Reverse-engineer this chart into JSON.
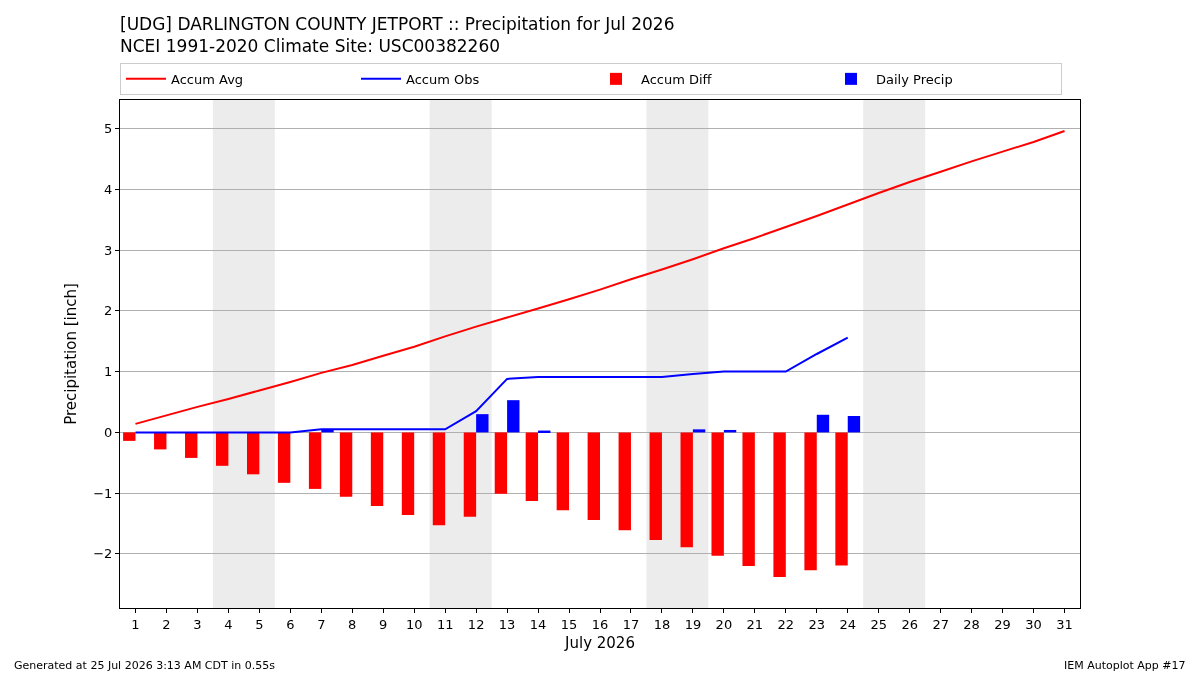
{
  "chart_data": {
    "type": "bar",
    "title": "[UDG] DARLINGTON COUNTY JETPORT :: Precipitation for Jul 2026",
    "subtitle": "NCEI 1991-2020 Climate Site: USC00382260",
    "xlabel": "July 2026",
    "ylabel": "Precipitation [inch]",
    "x": [
      1,
      2,
      3,
      4,
      5,
      6,
      7,
      8,
      9,
      10,
      11,
      12,
      13,
      14,
      15,
      16,
      17,
      18,
      19,
      20,
      21,
      22,
      23,
      24,
      25,
      26,
      27,
      28,
      29,
      30,
      31
    ],
    "series": [
      {
        "name": "Accum Avg",
        "type": "line",
        "color": "#ff0000",
        "values": [
          0.14,
          0.28,
          0.42,
          0.55,
          0.69,
          0.83,
          0.98,
          1.11,
          1.26,
          1.41,
          1.58,
          1.74,
          1.89,
          2.04,
          2.19,
          2.35,
          2.52,
          2.68,
          2.85,
          3.03,
          3.2,
          3.38,
          3.56,
          3.75,
          3.94,
          4.12,
          4.29,
          4.46,
          4.62,
          4.78,
          4.96
        ]
      },
      {
        "name": "Accum Obs",
        "type": "line",
        "color": "#0000ff",
        "values": [
          0,
          0,
          0,
          0,
          0,
          0,
          0.05,
          0.05,
          0.05,
          0.05,
          0.05,
          0.35,
          0.88,
          0.91,
          0.91,
          0.91,
          0.91,
          0.91,
          0.96,
          1.0,
          1.0,
          1.0,
          1.29,
          1.56,
          null,
          null,
          null,
          null,
          null,
          null,
          null
        ]
      },
      {
        "name": "Accum Diff",
        "color": "#ff0000",
        "values": [
          -0.14,
          -0.28,
          -0.42,
          -0.55,
          -0.69,
          -0.83,
          -0.93,
          -1.06,
          -1.21,
          -1.36,
          -1.53,
          -1.39,
          -1.01,
          -1.13,
          -1.28,
          -1.44,
          -1.61,
          -1.77,
          -1.89,
          -2.03,
          -2.2,
          -2.38,
          -2.27,
          -2.19,
          null,
          null,
          null,
          null,
          null,
          null,
          null
        ]
      },
      {
        "name": "Daily Precip",
        "color": "#0000ff",
        "values": [
          0,
          0,
          0,
          0,
          0,
          0,
          0.05,
          0,
          0,
          0,
          0,
          0.3,
          0.53,
          0.03,
          0,
          0,
          0,
          0,
          0.05,
          0.04,
          0,
          0,
          0.29,
          0.27,
          null,
          null,
          null,
          null,
          null,
          null,
          null
        ]
      }
    ],
    "xlim": [
      0.5,
      31.5
    ],
    "xticks": [
      1,
      2,
      3,
      4,
      5,
      6,
      7,
      8,
      9,
      10,
      11,
      12,
      13,
      14,
      15,
      16,
      17,
      18,
      19,
      20,
      21,
      22,
      23,
      24,
      25,
      26,
      27,
      28,
      29,
      30,
      31
    ],
    "ylim": [
      -2.89,
      5.47
    ],
    "yticks": [
      {
        "value": -2,
        "label": "−2"
      },
      {
        "value": -1,
        "label": "−1"
      },
      0,
      1,
      2,
      3,
      4,
      5
    ],
    "bands": [
      {
        "axis": "x",
        "from": 3.5,
        "to": 5.5,
        "color": "#ececec"
      },
      {
        "axis": "x",
        "from": 10.5,
        "to": 12.5,
        "color": "#ececec"
      },
      {
        "axis": "x",
        "from": 17.5,
        "to": 19.5,
        "color": "#ececec"
      },
      {
        "axis": "x",
        "from": 24.5,
        "to": 26.5,
        "color": "#ececec"
      }
    ],
    "grid": "y",
    "legend": "top",
    "annotations": [
      "Generated at 25 Jul 2026 3:13 AM CDT in 0.55s",
      "IEM Autoplot App #17"
    ]
  }
}
